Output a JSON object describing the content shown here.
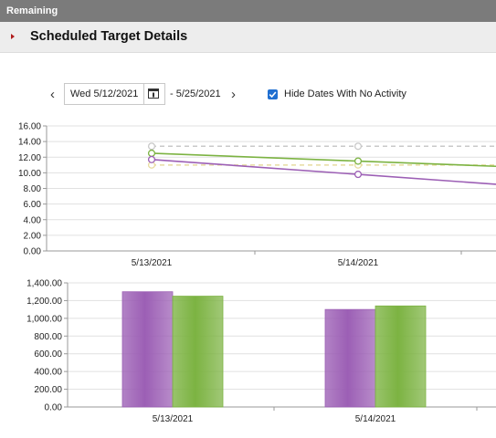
{
  "topbar": {
    "title": "Remaining"
  },
  "header": {
    "title": "Scheduled Target Details"
  },
  "toolbar": {
    "start_date": "Wed 5/12/2021",
    "end_date_text": "- 5/25/2021",
    "prev_arrow": "‹",
    "next_arrow": "›",
    "hide_dates_label": "Hide Dates With No Activity",
    "hide_dates_checked": true,
    "icons": [
      "chevron-left-icon",
      "calendar-icon",
      "chevron-right-icon",
      "checkmark-icon"
    ]
  },
  "chart_data": [
    {
      "type": "line",
      "categories": [
        "5/13/2021",
        "5/14/2021"
      ],
      "y_tick_labels": [
        "0.00",
        "2.00",
        "4.00",
        "6.00",
        "8.00",
        "10.00",
        "12.00",
        "14.00",
        "16.00"
      ],
      "ylim": [
        0,
        16
      ],
      "grid": true,
      "series": [
        {
          "values": [
            13.4,
            13.4
          ],
          "color": "#c9c9c9",
          "dashed": true
        },
        {
          "values": [
            11.0,
            11.0
          ],
          "color": "#e8dca0",
          "dashed": true
        },
        {
          "values": [
            12.5,
            11.5
          ],
          "color": "#7cb342",
          "dashed": false
        },
        {
          "values": [
            11.7,
            9.8
          ],
          "color": "#9c5fb5",
          "dashed": false
        }
      ]
    },
    {
      "type": "bar",
      "categories": [
        "5/13/2021",
        "5/14/2021"
      ],
      "y_tick_labels": [
        "0.00",
        "200.00",
        "400.00",
        "600.00",
        "800.00",
        "1,000.00",
        "1,200.00",
        "1,400.00"
      ],
      "ylim": [
        0,
        1400
      ],
      "grid": true,
      "series": [
        {
          "values": [
            1300,
            1100
          ],
          "color": "#9c5fb5"
        },
        {
          "values": [
            1250,
            1140
          ],
          "color": "#7cb342"
        }
      ]
    }
  ]
}
